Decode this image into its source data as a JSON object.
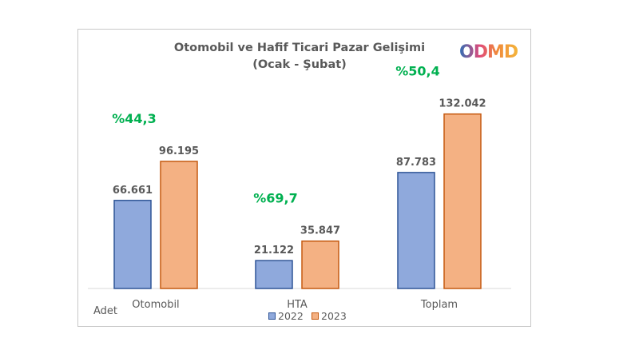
{
  "chart_data": {
    "type": "bar",
    "title": "Otomobil ve Hafif Ticari Pazar Gelişimi",
    "subtitle": "(Ocak - Şubat)",
    "categories": [
      "Otomobil",
      "HTA",
      "Toplam"
    ],
    "series": [
      {
        "name": "2022",
        "values": [
          66661,
          21122,
          87783
        ],
        "labels": [
          "66.661",
          "21.122",
          "87.783"
        ],
        "color": "#8fa9dc"
      },
      {
        "name": "2023",
        "values": [
          96195,
          35847,
          132042
        ],
        "labels": [
          "96.195",
          "35.847",
          "132.042"
        ],
        "color": "#f4b183"
      }
    ],
    "growth_labels": [
      "%44,3",
      "%69,7",
      "%50,4"
    ],
    "growth_color": "#00b050",
    "unit_label": "Adet",
    "ylim": [
      0,
      150000
    ],
    "grid": false,
    "legend_position": "bottom",
    "border_colors": {
      "2022": "#2f5597",
      "2023": "#c55a11"
    }
  },
  "logo": {
    "text": "ODMD"
  }
}
